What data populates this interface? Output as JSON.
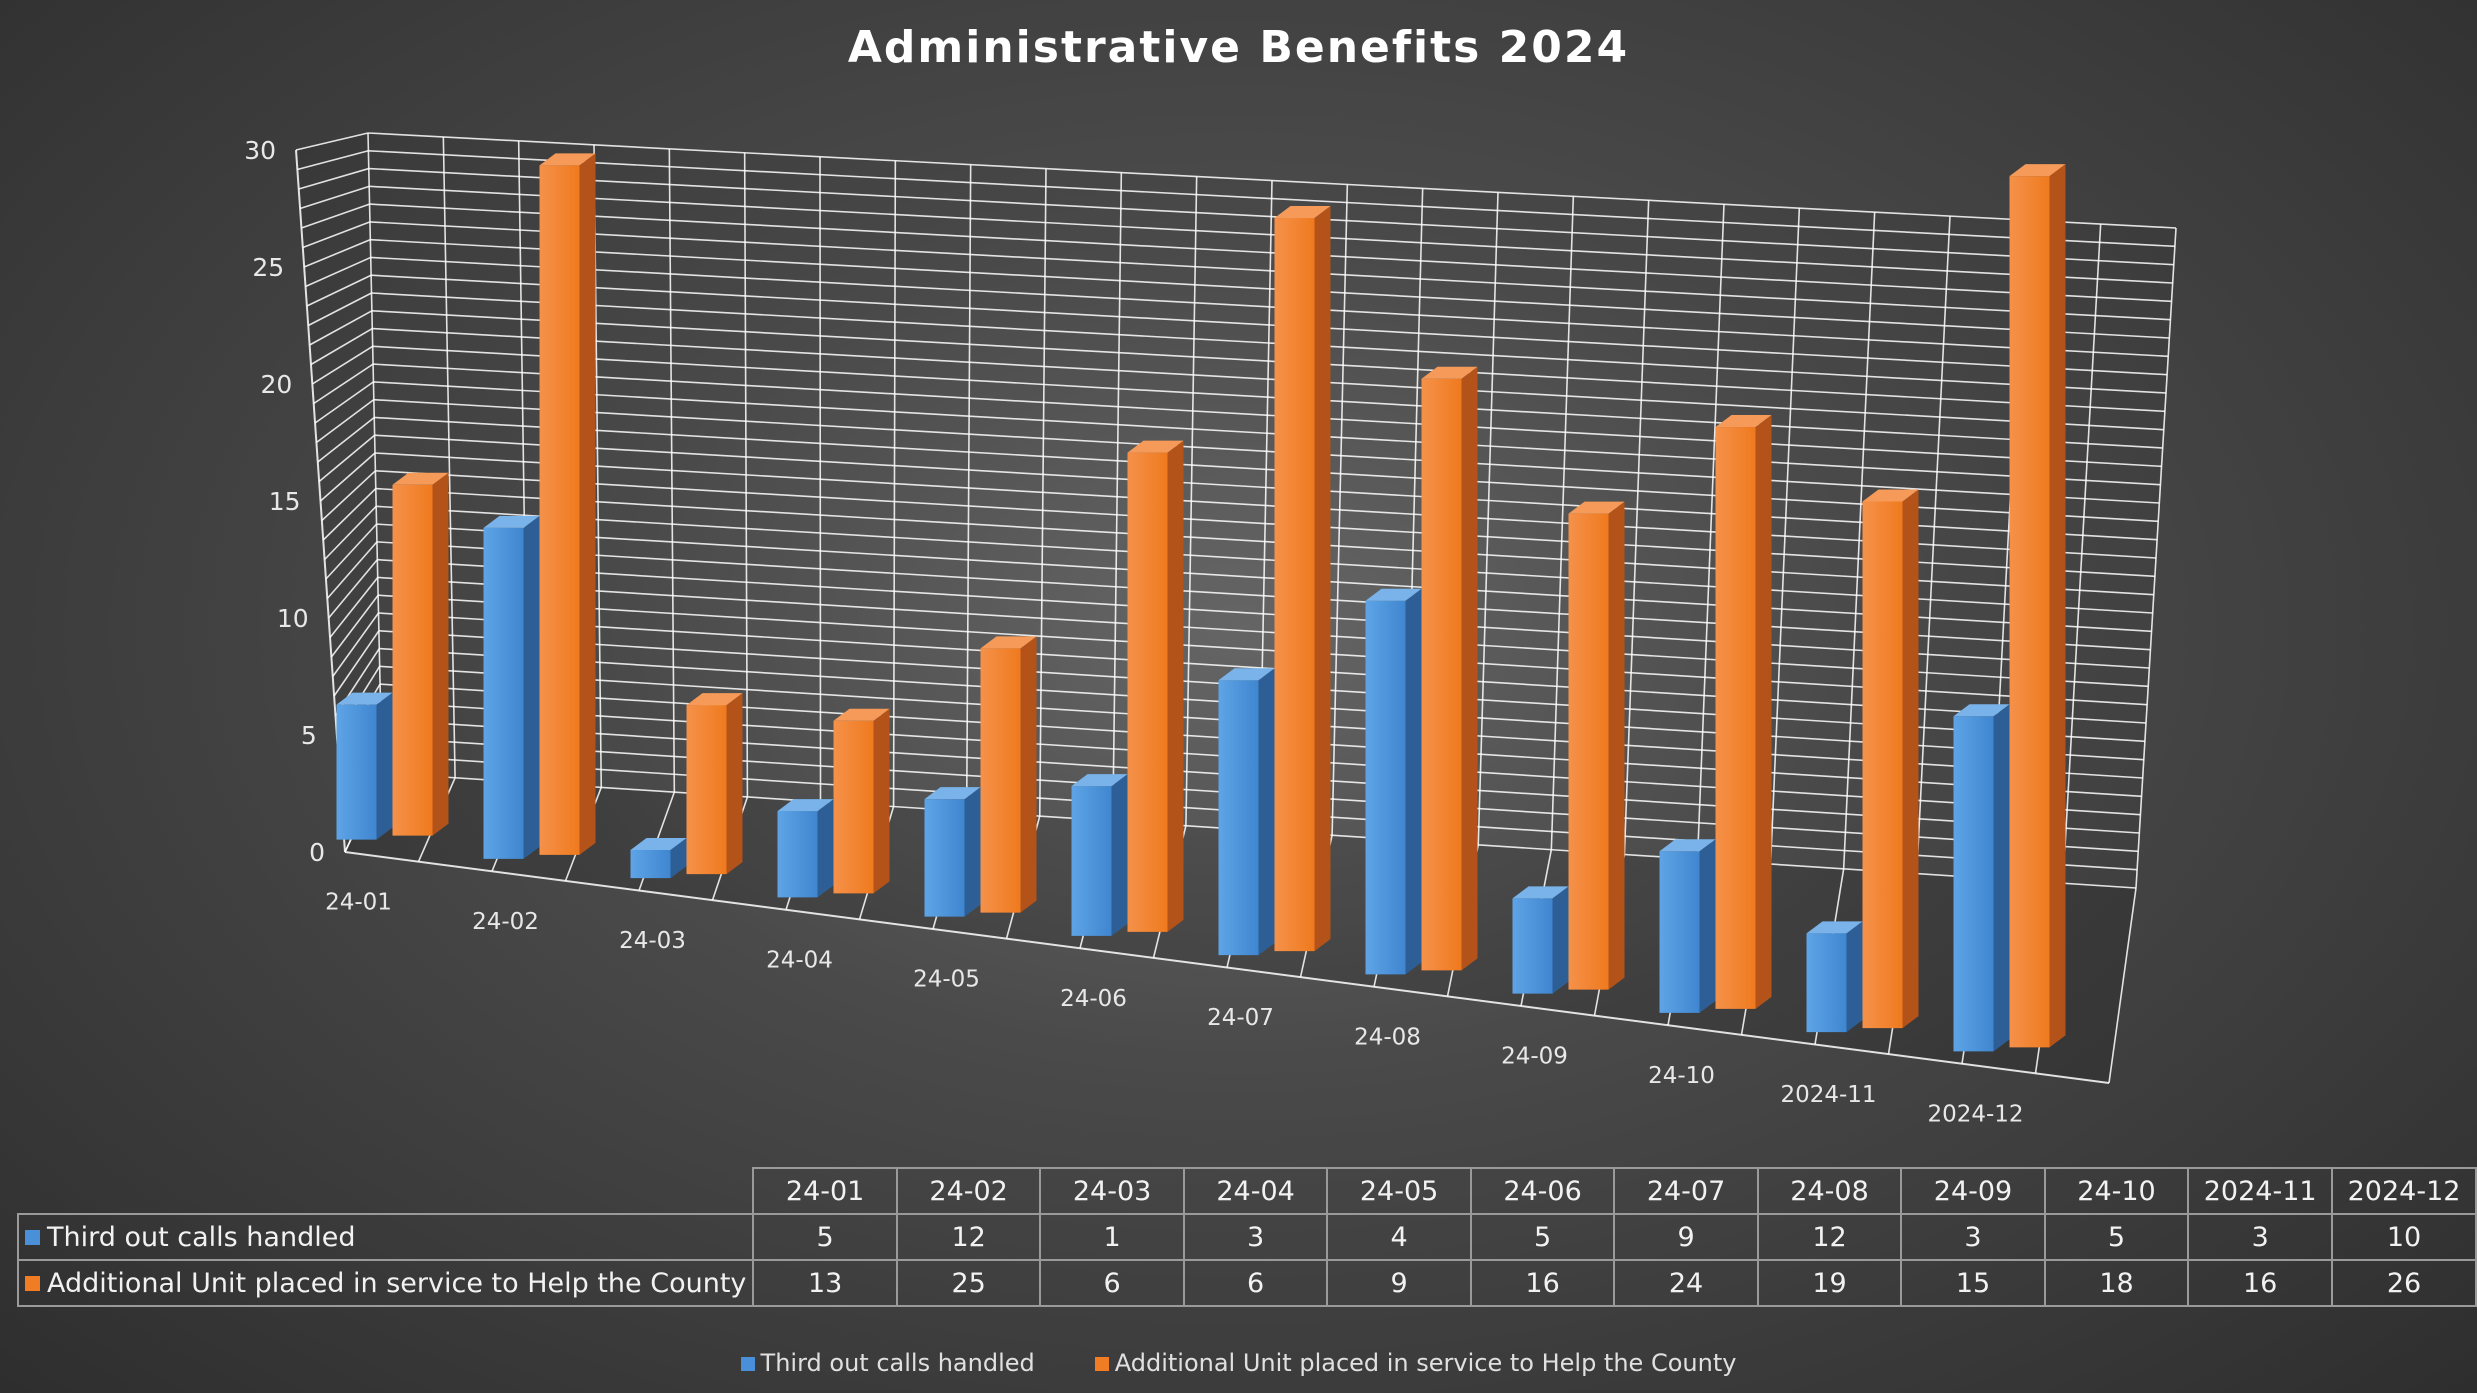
{
  "chart_data": {
    "type": "bar",
    "style": "3d-clustered-column",
    "title": "Administrative Benefits 2024",
    "categories": [
      "24-01",
      "24-02",
      "24-03",
      "24-04",
      "24-05",
      "24-06",
      "24-07",
      "24-08",
      "24-09",
      "24-10",
      "2024-11",
      "2024-12"
    ],
    "series": [
      {
        "name": "Third out calls handled",
        "color": "#4a90d9",
        "values": [
          5,
          12,
          1,
          3,
          4,
          5,
          9,
          12,
          3,
          5,
          3,
          10
        ]
      },
      {
        "name": "Additional Unit placed in service to Help the County",
        "color": "#f07d23",
        "values": [
          13,
          25,
          6,
          6,
          9,
          16,
          24,
          19,
          15,
          18,
          16,
          26
        ]
      }
    ],
    "ylim": [
      0,
      30
    ],
    "yticks": [
      "0",
      "5",
      "10",
      "15",
      "20",
      "25",
      "30"
    ],
    "xlabel": "",
    "ylabel": "",
    "grid": true,
    "legend": "bottom",
    "data_table": true
  }
}
